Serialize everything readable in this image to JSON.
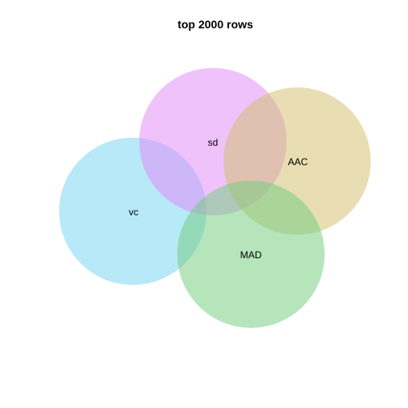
{
  "title": "top 2000 rows",
  "sets": [
    {
      "key": "sd",
      "label": "sd",
      "color": "#e08af7"
    },
    {
      "key": "aac",
      "label": "AAC",
      "color": "#d2bd6e"
    },
    {
      "key": "vc",
      "label": "vc",
      "color": "#76d4f3"
    },
    {
      "key": "mad",
      "label": "MAD",
      "color": "#73ce7f"
    }
  ],
  "fill_opacity": 0.52
}
